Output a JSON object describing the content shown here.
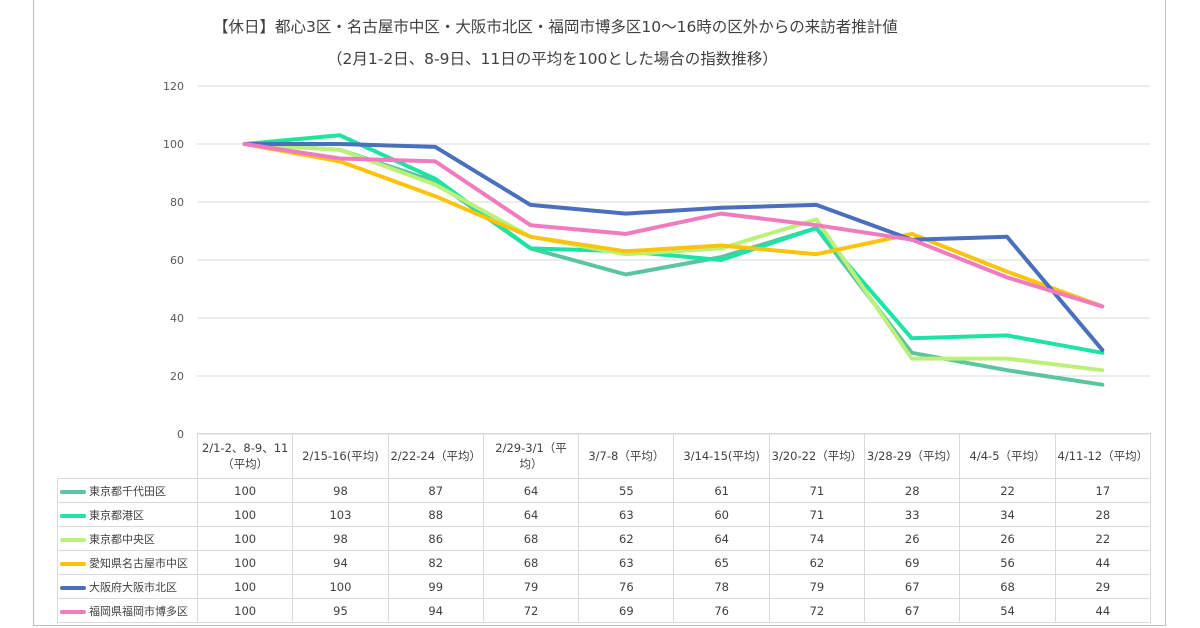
{
  "title": "【休日】都心3区・名古屋市中区・大阪市北区・福岡市博多区10〜16時の区外からの来訪者推計値",
  "subtitle": "（2月1-2日、8-9日、11日の平均を100とした場合の指数推移）",
  "chart_data": {
    "type": "line",
    "categories": [
      "2/1-2、8-9、11（平均）",
      "2/15-16(平均)",
      "2/22-24（平均）",
      "2/29-3/1（平均）",
      "3/7-8（平均）",
      "3/14-15(平均)",
      "3/20-22（平均）",
      "3/28-29（平均）",
      "4/4-5（平均）",
      "4/11-12（平均）"
    ],
    "category_lines": [
      [
        "2/1-2、8-9、11",
        "（平均）"
      ],
      [
        "2/15-16(平均)"
      ],
      [
        "2/22-24（平均）"
      ],
      [
        "2/29-3/1（平",
        "均）"
      ],
      [
        "3/7-8（平均）"
      ],
      [
        "3/14-15(平均)"
      ],
      [
        "3/20-22（平均）"
      ],
      [
        "3/28-29（平均）"
      ],
      [
        "4/4-5（平均）"
      ],
      [
        "4/11-12（平均）"
      ]
    ],
    "series": [
      {
        "name": "東京都千代田区",
        "color": "#5bc4a0",
        "values": [
          100,
          98,
          87,
          64,
          55,
          61,
          71,
          28,
          22,
          17
        ]
      },
      {
        "name": "東京都港区",
        "color": "#1de3a4",
        "values": [
          100,
          103,
          88,
          64,
          63,
          60,
          71,
          33,
          34,
          28
        ]
      },
      {
        "name": "東京都中央区",
        "color": "#bdf07a",
        "values": [
          100,
          98,
          86,
          68,
          62,
          64,
          74,
          26,
          26,
          22
        ]
      },
      {
        "name": "愛知県名古屋市中区",
        "color": "#fcc30d",
        "values": [
          100,
          94,
          82,
          68,
          63,
          65,
          62,
          69,
          56,
          44
        ]
      },
      {
        "name": "大阪府大阪市北区",
        "color": "#4a6fbd",
        "values": [
          100,
          100,
          99,
          79,
          76,
          78,
          79,
          67,
          68,
          29
        ]
      },
      {
        "name": "福岡県福岡市博多区",
        "color": "#f17bbf",
        "values": [
          100,
          95,
          94,
          72,
          69,
          76,
          72,
          67,
          54,
          44
        ]
      }
    ],
    "y_ticks": [
      "0",
      "20",
      "40",
      "60",
      "80",
      "100",
      "120"
    ],
    "ylim": [
      0,
      120
    ],
    "grid": true,
    "legend": "data-table"
  }
}
